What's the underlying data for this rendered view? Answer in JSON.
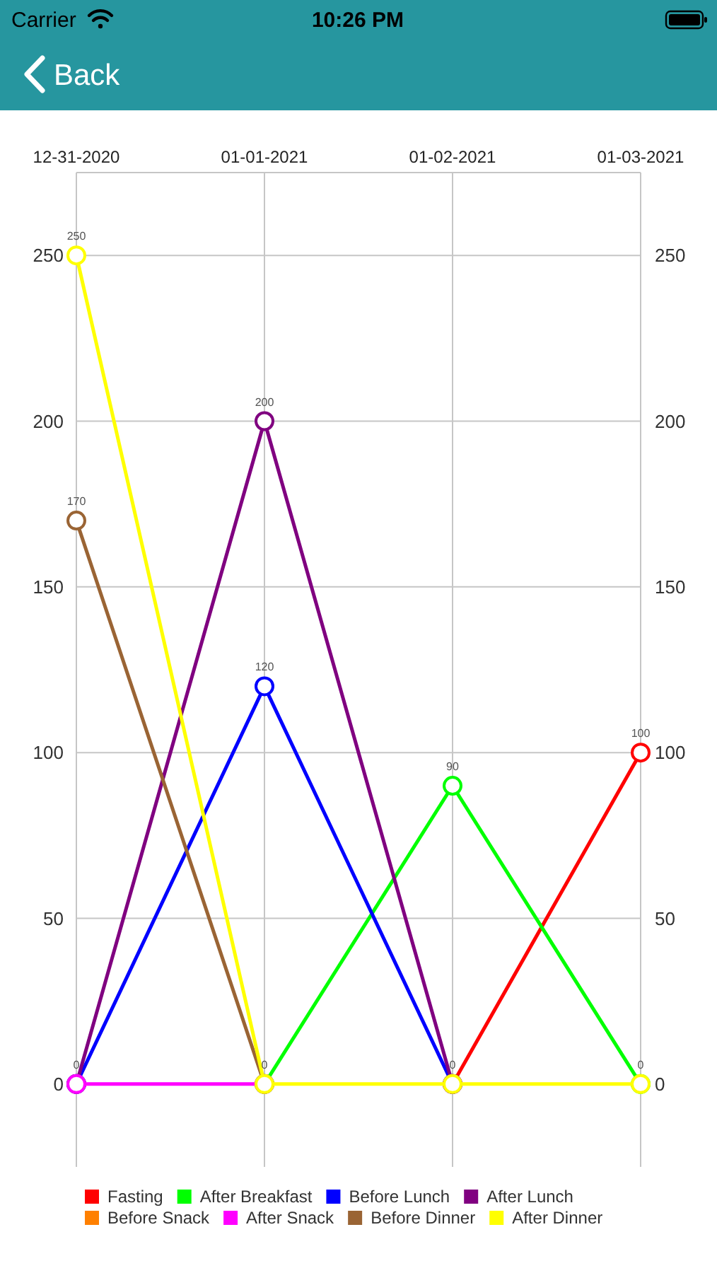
{
  "chart_data": {
    "type": "line",
    "annotations": [
      "Carrier",
      "10:26 PM",
      "Back"
    ],
    "categories": [
      "12-31-2020",
      "01-01-2021",
      "01-02-2021",
      "01-03-2021"
    ],
    "series": [
      {
        "name": "Fasting",
        "color": "#ff0000",
        "values": [
          null,
          null,
          0,
          100
        ],
        "value_labels": [
          null,
          null,
          null,
          "100"
        ]
      },
      {
        "name": "After Breakfast",
        "color": "#00ff00",
        "values": [
          null,
          0,
          90,
          0
        ],
        "value_labels": [
          null,
          null,
          "90",
          null
        ]
      },
      {
        "name": "Before Lunch",
        "color": "#0000ff",
        "values": [
          0,
          120,
          0,
          null
        ],
        "value_labels": [
          null,
          "120",
          null,
          null
        ]
      },
      {
        "name": "After Lunch",
        "color": "#800080",
        "values": [
          0,
          200,
          0,
          null
        ],
        "value_labels": [
          null,
          "200",
          null,
          null
        ]
      },
      {
        "name": "Before Snack",
        "color": "#ff8000",
        "values": [
          null,
          null,
          null,
          null
        ]
      },
      {
        "name": "After Snack",
        "color": "#ff00ff",
        "values": [
          0,
          0,
          null,
          null
        ],
        "value_labels": [
          "0",
          null,
          null,
          null
        ]
      },
      {
        "name": "Before Dinner",
        "color": "#9a6434",
        "values": [
          170,
          0,
          null,
          null
        ],
        "value_labels": [
          "170",
          null,
          null,
          null
        ]
      },
      {
        "name": "After Dinner",
        "color": "#ffff00",
        "values": [
          250,
          0,
          0,
          0
        ],
        "value_labels": [
          "250",
          "0",
          "0",
          "0"
        ]
      }
    ],
    "ylim": [
      -25,
      275
    ],
    "yticks": [
      0,
      50,
      100,
      150,
      200,
      250
    ],
    "y2lim": [
      -25,
      275
    ],
    "y2ticks": [
      0,
      50,
      100,
      150,
      200,
      250
    ],
    "grid": true,
    "legend": "bottom",
    "marker": "circle",
    "line_style": "solid"
  }
}
